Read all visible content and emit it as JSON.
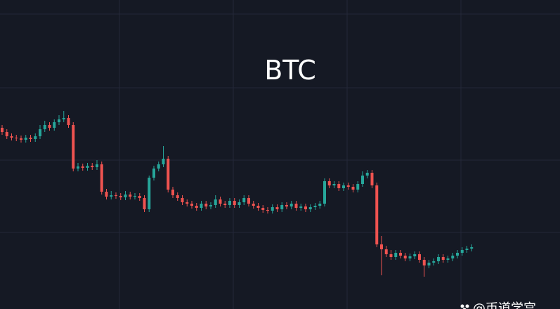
{
  "chart_data": {
    "type": "candlestick",
    "title": "BTC",
    "watermark": "@币道学宫",
    "up_color": "#26a69a",
    "down_color": "#ef5350",
    "ylim": [
      0,
      440
    ],
    "open": [
      258,
      252,
      246,
      244,
      243,
      241,
      244,
      242,
      246,
      256,
      262,
      258,
      266,
      270,
      272,
      262,
      200,
      203,
      201,
      204,
      202,
      206,
      167,
      160,
      162,
      161,
      159,
      163,
      160,
      161,
      158,
      142,
      187,
      200,
      206,
      214,
      170,
      162,
      158,
      152,
      150,
      147,
      144,
      150,
      146,
      148,
      156,
      150,
      148,
      154,
      148,
      152,
      158,
      150,
      147,
      144,
      141,
      140,
      145,
      142,
      148,
      146,
      150,
      144,
      146,
      142,
      145,
      147,
      150,
      182,
      176,
      178,
      172,
      176,
      174,
      170,
      178,
      190,
      194,
      176,
      92,
      85,
      78,
      74,
      80,
      76,
      72,
      75,
      78,
      70,
      62,
      66,
      68,
      74,
      70,
      72,
      76,
      80,
      84,
      86
    ],
    "high": [
      262,
      256,
      250,
      248,
      247,
      248,
      248,
      250,
      262,
      268,
      266,
      270,
      276,
      282,
      276,
      266,
      208,
      207,
      208,
      208,
      212,
      210,
      171,
      168,
      166,
      165,
      168,
      167,
      165,
      165,
      162,
      190,
      204,
      210,
      232,
      218,
      174,
      166,
      162,
      156,
      154,
      151,
      154,
      154,
      152,
      162,
      160,
      154,
      158,
      158,
      156,
      162,
      162,
      154,
      151,
      148,
      145,
      149,
      149,
      152,
      152,
      154,
      154,
      150,
      150,
      149,
      151,
      154,
      186,
      186,
      182,
      182,
      180,
      180,
      178,
      182,
      196,
      198,
      198,
      180,
      104,
      90,
      84,
      84,
      84,
      80,
      79,
      82,
      82,
      74,
      70,
      72,
      78,
      78,
      76,
      80,
      84,
      88,
      90,
      92
    ],
    "low": [
      248,
      242,
      240,
      239,
      237,
      237,
      238,
      238,
      242,
      252,
      254,
      254,
      262,
      266,
      258,
      196,
      196,
      197,
      197,
      198,
      198,
      163,
      156,
      156,
      157,
      155,
      155,
      156,
      156,
      154,
      138,
      138,
      183,
      196,
      202,
      166,
      158,
      154,
      148,
      146,
      143,
      140,
      140,
      142,
      142,
      144,
      146,
      144,
      144,
      144,
      144,
      148,
      146,
      143,
      140,
      137,
      136,
      136,
      138,
      138,
      142,
      142,
      140,
      140,
      138,
      138,
      141,
      143,
      146,
      172,
      172,
      168,
      168,
      170,
      166,
      166,
      174,
      186,
      172,
      88,
      48,
      74,
      70,
      70,
      72,
      68,
      68,
      71,
      66,
      46,
      58,
      62,
      64,
      66,
      66,
      68,
      72,
      76,
      80,
      82
    ],
    "close": [
      252,
      246,
      244,
      243,
      241,
      244,
      242,
      246,
      256,
      262,
      258,
      266,
      270,
      272,
      262,
      200,
      203,
      201,
      204,
      202,
      206,
      167,
      160,
      162,
      161,
      159,
      163,
      160,
      161,
      158,
      142,
      187,
      200,
      206,
      214,
      170,
      162,
      158,
      152,
      150,
      147,
      144,
      150,
      146,
      148,
      156,
      150,
      148,
      154,
      148,
      152,
      158,
      150,
      147,
      144,
      141,
      140,
      145,
      142,
      148,
      146,
      150,
      144,
      146,
      142,
      145,
      147,
      150,
      182,
      176,
      178,
      172,
      176,
      174,
      170,
      178,
      190,
      194,
      176,
      92,
      85,
      78,
      74,
      80,
      76,
      72,
      75,
      78,
      70,
      62,
      66,
      68,
      74,
      70,
      72,
      76,
      80,
      84,
      86,
      88
    ]
  }
}
